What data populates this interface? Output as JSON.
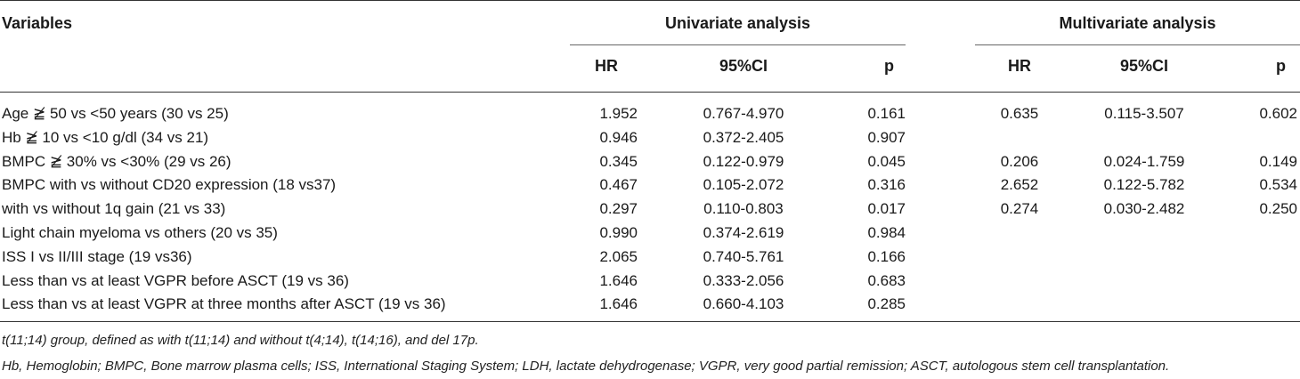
{
  "header": {
    "variables": "Variables",
    "univariate": "Univariate analysis",
    "multivariate": "Multivariate analysis",
    "uni_hr": "HR",
    "uni_ci": "95%CI",
    "uni_p": "p",
    "multi_hr": "HR",
    "multi_ci": "95%CI",
    "multi_p": "p"
  },
  "rows": [
    {
      "label": "Age ≧̸ 50 vs <50 years (30 vs 25)",
      "uhr": "1.952",
      "uci": "0.767-4.970",
      "up": "0.161",
      "mhr": "0.635",
      "mci": "0.115-3.507",
      "mp": "0.602"
    },
    {
      "label": "Hb ≧̸ 10 vs <10 g/dl (34 vs 21)",
      "uhr": "0.946",
      "uci": "0.372-2.405",
      "up": "0.907",
      "mhr": "",
      "mci": "",
      "mp": ""
    },
    {
      "label": "BMPC ≧̸ 30% vs <30% (29 vs 26)",
      "uhr": "0.345",
      "uci": "0.122-0.979",
      "up": "0.045",
      "mhr": "0.206",
      "mci": "0.024-1.759",
      "mp": "0.149"
    },
    {
      "label": "BMPC with vs without CD20 expression (18 vs37)",
      "uhr": "0.467",
      "uci": "0.105-2.072",
      "up": "0.316",
      "mhr": "2.652",
      "mci": "0.122-5.782",
      "mp": "0.534"
    },
    {
      "label": "with vs without 1q gain (21 vs 33)",
      "uhr": "0.297",
      "uci": "0.110-0.803",
      "up": "0.017",
      "mhr": "0.274",
      "mci": "0.030-2.482",
      "mp": "0.250"
    },
    {
      "label": "Light chain myeloma vs others (20 vs 35)",
      "uhr": "0.990",
      "uci": "0.374-2.619",
      "up": "0.984",
      "mhr": "",
      "mci": "",
      "mp": ""
    },
    {
      "label": "ISS I vs II/III stage (19 vs36)",
      "uhr": "2.065",
      "uci": "0.740-5.761",
      "up": "0.166",
      "mhr": "",
      "mci": "",
      "mp": ""
    },
    {
      "label": "Less than vs at least VGPR before ASCT (19 vs 36)",
      "uhr": "1.646",
      "uci": "0.333-2.056",
      "up": "0.683",
      "mhr": "",
      "mci": "",
      "mp": ""
    },
    {
      "label": "Less than vs at least VGPR at three months after ASCT (19 vs 36)",
      "uhr": "1.646",
      "uci": "0.660-4.103",
      "up": "0.285",
      "mhr": "",
      "mci": "",
      "mp": ""
    }
  ],
  "notes": {
    "note1": "t(11;14) group, defined as with t(11;14) and without t(4;14), t(14;16), and del 17p.",
    "note2": "Hb, Hemoglobin; BMPC, Bone marrow plasma cells; ISS, International Staging System; LDH, lactate dehydrogenase; VGPR, very good partial remission; ASCT, autologous stem cell transplantation."
  }
}
